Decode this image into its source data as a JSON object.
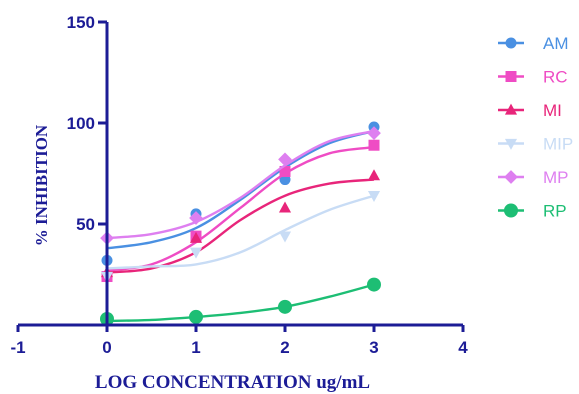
{
  "chart_data": {
    "type": "scatter",
    "xlabel": "LOG CONCENTRATION ug/mL",
    "ylabel": "% INHIBITION",
    "xlim": [
      -1,
      4
    ],
    "ylim": [
      0,
      150
    ],
    "x_ticks": [
      "-1",
      "0",
      "1",
      "2",
      "3",
      "4"
    ],
    "y_ticks": [
      "50",
      "100",
      "150"
    ],
    "grid": false,
    "legend_position": "right",
    "fit": "sigmoidal curve",
    "series": [
      {
        "name": "AM",
        "color": "#4a90e2",
        "marker": "circle",
        "points": [
          [
            0,
            32
          ],
          [
            1,
            55
          ],
          [
            2,
            72
          ],
          [
            3,
            98
          ]
        ],
        "curve": [
          [
            0,
            38
          ],
          [
            0.5,
            41
          ],
          [
            1,
            48
          ],
          [
            1.5,
            62
          ],
          [
            2,
            78
          ],
          [
            2.5,
            90
          ],
          [
            3,
            96
          ]
        ]
      },
      {
        "name": "RC",
        "color": "#ef4cc4",
        "marker": "square",
        "points": [
          [
            0,
            24
          ],
          [
            1,
            44
          ],
          [
            2,
            76
          ],
          [
            3,
            89
          ]
        ],
        "curve": [
          [
            0,
            27
          ],
          [
            0.5,
            30
          ],
          [
            1,
            41
          ],
          [
            1.5,
            58
          ],
          [
            2,
            75
          ],
          [
            2.5,
            85
          ],
          [
            3,
            88
          ]
        ]
      },
      {
        "name": "MI",
        "color": "#e8257a",
        "marker": "triangle",
        "points": [
          [
            0,
            26
          ],
          [
            1,
            43
          ],
          [
            2,
            58
          ],
          [
            3,
            74
          ]
        ],
        "curve": [
          [
            0,
            26
          ],
          [
            0.5,
            28
          ],
          [
            1,
            36
          ],
          [
            1.5,
            52
          ],
          [
            2,
            64
          ],
          [
            2.5,
            70
          ],
          [
            3,
            72
          ]
        ]
      },
      {
        "name": "MIP",
        "color": "#c8dcf5",
        "marker": "triangle-down",
        "points": [
          [
            0,
            24
          ],
          [
            1,
            36
          ],
          [
            2,
            44
          ],
          [
            3,
            64
          ]
        ],
        "curve": [
          [
            0,
            28
          ],
          [
            0.5,
            29
          ],
          [
            1,
            30
          ],
          [
            1.5,
            36
          ],
          [
            2,
            47
          ],
          [
            2.5,
            57
          ],
          [
            3,
            64
          ]
        ]
      },
      {
        "name": "MP",
        "color": "#de7ff0",
        "marker": "diamond",
        "points": [
          [
            0,
            43
          ],
          [
            1,
            53
          ],
          [
            2,
            82
          ],
          [
            3,
            95
          ]
        ],
        "curve": [
          [
            0,
            43
          ],
          [
            0.5,
            45
          ],
          [
            1,
            51
          ],
          [
            1.5,
            63
          ],
          [
            2,
            79
          ],
          [
            2.5,
            91
          ],
          [
            3,
            96
          ]
        ]
      },
      {
        "name": "RP",
        "color": "#1dbe74",
        "marker": "circle",
        "points": [
          [
            0,
            3
          ],
          [
            1,
            4
          ],
          [
            2,
            9
          ],
          [
            3,
            20
          ]
        ],
        "curve": [
          [
            0,
            2
          ],
          [
            0.5,
            2.5
          ],
          [
            1,
            4
          ],
          [
            1.5,
            6
          ],
          [
            2,
            9
          ],
          [
            2.5,
            14
          ],
          [
            3,
            20
          ]
        ]
      }
    ]
  }
}
